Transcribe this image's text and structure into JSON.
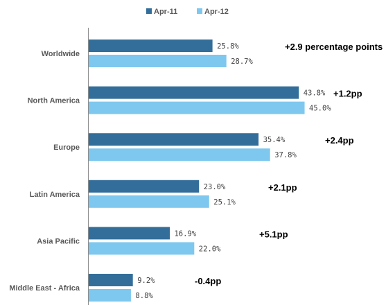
{
  "chart_data": {
    "type": "bar",
    "orientation": "horizontal",
    "categories": [
      "Worldwide",
      "North America",
      "Europe",
      "Latin America",
      "Asia Pacific",
      "Middle East - Africa"
    ],
    "series": [
      {
        "name": "Apr-11",
        "color": "#336e9a",
        "values": [
          25.8,
          43.8,
          35.4,
          23.0,
          16.9,
          9.2
        ],
        "labels": [
          "25.8%",
          "43.8%",
          "35.4%",
          "23.0%",
          "16.9%",
          "9.2%"
        ]
      },
      {
        "name": "Apr-12",
        "color": "#7ec8ef",
        "values": [
          28.7,
          45.0,
          37.8,
          25.1,
          22.0,
          8.8
        ],
        "labels": [
          "28.7%",
          "45.0%",
          "37.8%",
          "25.1%",
          "22.0%",
          "8.8%"
        ]
      }
    ],
    "annotations": [
      "+2.9 percentage points",
      "+1.2pp",
      "+2.4pp",
      "+2.1pp",
      "+5.1pp",
      "-0.4pp"
    ],
    "xlim": [
      0,
      46
    ],
    "legend_position": "top",
    "grid": false
  }
}
